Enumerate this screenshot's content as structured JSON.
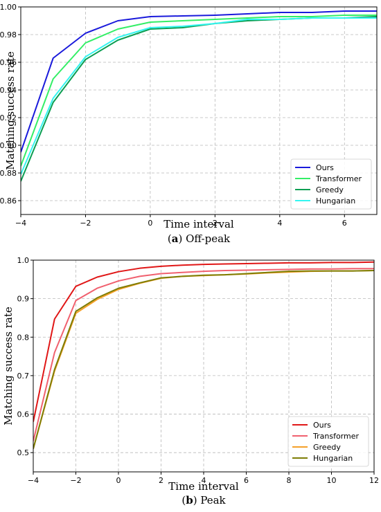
{
  "chart_data": [
    {
      "type": "line",
      "caption": {
        "letter": "a",
        "text": "Off-peak"
      },
      "xlabel": "Time interval",
      "ylabel": "Matching success rate",
      "xlim": [
        -4,
        7
      ],
      "ylim": [
        0.85,
        1.0
      ],
      "xticks": [
        -4,
        -2,
        0,
        2,
        4,
        6
      ],
      "yticks": [
        0.86,
        0.88,
        0.9,
        0.92,
        0.94,
        0.96,
        0.98,
        1.0
      ],
      "ytick_decimals": 2,
      "grid": true,
      "legend_position": "lower-right",
      "x": [
        -4,
        -3,
        -2,
        -1,
        0,
        1,
        2,
        3,
        4,
        5,
        6,
        7
      ],
      "series": [
        {
          "name": "Ours",
          "color": "#1a1adb",
          "values": [
            0.895,
            0.963,
            0.981,
            0.99,
            0.993,
            0.9935,
            0.994,
            0.995,
            0.996,
            0.996,
            0.997,
            0.997
          ]
        },
        {
          "name": "Transformer",
          "color": "#33ee66",
          "values": [
            0.885,
            0.948,
            0.974,
            0.984,
            0.989,
            0.99,
            0.991,
            0.992,
            0.993,
            0.993,
            0.994,
            0.994
          ]
        },
        {
          "name": "Greedy",
          "color": "#0b9e52",
          "values": [
            0.874,
            0.931,
            0.962,
            0.976,
            0.984,
            0.985,
            0.988,
            0.99,
            0.991,
            0.992,
            0.992,
            0.993
          ]
        },
        {
          "name": "Hungarian",
          "color": "#33f5f0",
          "values": [
            0.879,
            0.934,
            0.964,
            0.978,
            0.985,
            0.986,
            0.988,
            0.991,
            0.991,
            0.992,
            0.992,
            0.992
          ]
        }
      ]
    },
    {
      "type": "line",
      "caption": {
        "letter": "b",
        "text": "Peak"
      },
      "xlabel": "Time interval",
      "ylabel": "Matching success rate",
      "xlim": [
        -4,
        12
      ],
      "ylim": [
        0.45,
        1.0
      ],
      "xticks": [
        -4,
        -2,
        0,
        2,
        4,
        6,
        8,
        10,
        12
      ],
      "yticks": [
        0.5,
        0.6,
        0.7,
        0.8,
        0.9,
        1.0
      ],
      "ytick_decimals": 1,
      "grid": true,
      "legend_position": "lower-right",
      "x": [
        -4,
        -3,
        -2,
        -1,
        0,
        1,
        2,
        3,
        4,
        5,
        6,
        7,
        8,
        9,
        10,
        11,
        12
      ],
      "series": [
        {
          "name": "Ours",
          "color": "#e01616",
          "values": [
            0.58,
            0.847,
            0.932,
            0.956,
            0.97,
            0.979,
            0.984,
            0.987,
            0.989,
            0.99,
            0.991,
            0.992,
            0.993,
            0.993,
            0.994,
            0.994,
            0.995
          ]
        },
        {
          "name": "Transformer",
          "color": "#f0606e",
          "values": [
            0.53,
            0.76,
            0.895,
            0.927,
            0.946,
            0.958,
            0.965,
            0.968,
            0.971,
            0.973,
            0.974,
            0.975,
            0.976,
            0.977,
            0.977,
            0.978,
            0.978
          ]
        },
        {
          "name": "Greedy",
          "color": "#f5a028",
          "values": [
            0.51,
            0.712,
            0.862,
            0.898,
            0.924,
            0.94,
            0.953,
            0.958,
            0.96,
            0.962,
            0.964,
            0.967,
            0.969,
            0.971,
            0.972,
            0.972,
            0.973
          ]
        },
        {
          "name": "Hungarian",
          "color": "#7d7d05",
          "values": [
            0.51,
            0.716,
            0.867,
            0.902,
            0.927,
            0.941,
            0.954,
            0.958,
            0.961,
            0.962,
            0.965,
            0.968,
            0.971,
            0.972,
            0.972,
            0.972,
            0.973
          ]
        }
      ]
    }
  ]
}
